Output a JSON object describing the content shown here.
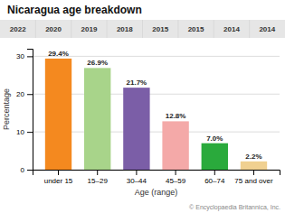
{
  "chart_data": {
    "type": "bar",
    "title": "Nicaragua age breakdown",
    "categories": [
      "under 15",
      "15–29",
      "30–44",
      "45–59",
      "60–74",
      "75 and over"
    ],
    "values": [
      29.4,
      26.9,
      21.7,
      12.8,
      7.0,
      2.2
    ],
    "value_labels": [
      "29.4%",
      "26.9%",
      "21.7%",
      "12.8%",
      "7.0%",
      "2.2%"
    ],
    "data_labels": true,
    "colors": [
      "#f4891f",
      "#a8d48a",
      "#7b5ea7",
      "#f4a9a8",
      "#2aaa3c",
      "#f0d090"
    ],
    "xlabel": "Age (range)",
    "ylabel": "Percentage",
    "ylim": [
      0,
      32
    ],
    "yticks": [
      0,
      10,
      20,
      30
    ],
    "grid": true,
    "annotations": [
      "2022",
      "2020",
      "2019",
      "2018",
      "2015",
      "2015",
      "2014",
      "2014",
      "© Encyclopaedia Britannica, Inc."
    ]
  }
}
